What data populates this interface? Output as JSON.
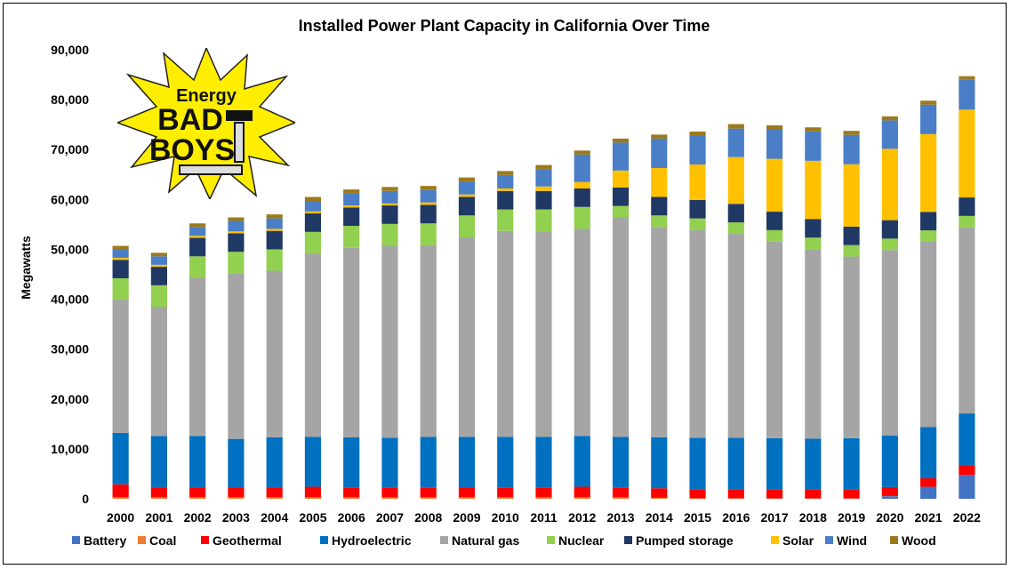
{
  "chart_data": {
    "type": "bar",
    "stacked": true,
    "title": "Installed Power Plant Capacity in California Over Time",
    "xlabel": "",
    "ylabel": "Megawatts",
    "ylim": [
      0,
      90000
    ],
    "yticks": [
      0,
      10000,
      20000,
      30000,
      40000,
      50000,
      60000,
      70000,
      80000,
      90000
    ],
    "ytick_labels": [
      "0",
      "10,000",
      "20,000",
      "30,000",
      "40,000",
      "50,000",
      "60,000",
      "70,000",
      "80,000",
      "90,000"
    ],
    "grid": false,
    "legend_position": "bottom",
    "categories": [
      "2000",
      "2001",
      "2002",
      "2003",
      "2004",
      "2005",
      "2006",
      "2007",
      "2008",
      "2009",
      "2010",
      "2011",
      "2012",
      "2013",
      "2014",
      "2015",
      "2016",
      "2017",
      "2018",
      "2019",
      "2020",
      "2021",
      "2022"
    ],
    "series": [
      {
        "name": "Battery",
        "color": "#4472c4",
        "values": [
          0,
          0,
          0,
          0,
          0,
          0,
          0,
          0,
          0,
          0,
          0,
          0,
          0,
          0,
          0,
          0,
          0,
          0,
          0,
          0,
          500,
          2400,
          4800
        ]
      },
      {
        "name": "Coal",
        "color": "#ed7d31",
        "values": [
          300,
          300,
          300,
          300,
          300,
          300,
          300,
          300,
          300,
          300,
          300,
          300,
          300,
          300,
          200,
          100,
          100,
          50,
          50,
          50,
          50,
          0,
          0
        ]
      },
      {
        "name": "Geothermal",
        "color": "#ff0000",
        "values": [
          2600,
          2000,
          2000,
          2000,
          2000,
          2100,
          1900,
          1900,
          1900,
          2000,
          1900,
          1900,
          2100,
          1900,
          1900,
          1800,
          1800,
          1800,
          1800,
          1800,
          1800,
          1700,
          1800
        ]
      },
      {
        "name": "Hydroelectric",
        "color": "#0070c0",
        "values": [
          10300,
          10300,
          10300,
          9700,
          10000,
          10000,
          10100,
          10000,
          10200,
          10100,
          10200,
          10200,
          10200,
          10200,
          10200,
          10300,
          10300,
          10300,
          10200,
          10300,
          10300,
          10300,
          10500
        ]
      },
      {
        "name": "Natural gas",
        "color": "#a5a5a5",
        "values": [
          26700,
          25900,
          31700,
          33200,
          33400,
          36800,
          38000,
          38500,
          38400,
          40000,
          41300,
          41200,
          41500,
          44000,
          42200,
          41700,
          40900,
          39400,
          38000,
          36400,
          37200,
          37100,
          37300
        ]
      },
      {
        "name": "Nuclear",
        "color": "#92d050",
        "values": [
          4300,
          4300,
          4300,
          4300,
          4300,
          4300,
          4400,
          4400,
          4400,
          4400,
          4300,
          4400,
          4400,
          2300,
          2300,
          2300,
          2300,
          2300,
          2300,
          2300,
          2300,
          2300,
          2300
        ]
      },
      {
        "name": "Pumped storage",
        "color": "#203864",
        "values": [
          3700,
          3700,
          3700,
          3700,
          3700,
          3700,
          3700,
          3700,
          3700,
          3700,
          3700,
          3700,
          3700,
          3700,
          3700,
          3700,
          3700,
          3700,
          3700,
          3700,
          3700,
          3700,
          3700
        ]
      },
      {
        "name": "Solar",
        "color": "#ffc000",
        "values": [
          400,
          400,
          400,
          400,
          400,
          400,
          400,
          400,
          500,
          500,
          500,
          900,
          1300,
          3400,
          5800,
          7100,
          9400,
          10600,
          11700,
          12500,
          14300,
          15600,
          17600
        ]
      },
      {
        "name": "Wind",
        "color": "#4a7ec7",
        "values": [
          1700,
          1700,
          1800,
          2100,
          2100,
          2100,
          2400,
          2500,
          2500,
          2600,
          2700,
          3500,
          5500,
          5600,
          5900,
          5800,
          5700,
          5900,
          5900,
          5900,
          5700,
          5900,
          6000
        ]
      },
      {
        "name": "Wood",
        "color": "#9c7a1c",
        "values": [
          700,
          700,
          700,
          700,
          800,
          800,
          800,
          800,
          800,
          800,
          800,
          800,
          800,
          800,
          800,
          800,
          900,
          800,
          800,
          800,
          800,
          800,
          700
        ]
      }
    ]
  }
}
